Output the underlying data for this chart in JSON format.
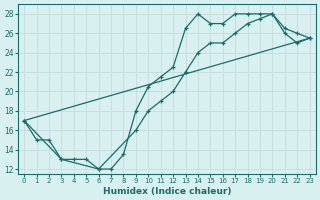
{
  "xlabel": "Humidex (Indice chaleur)",
  "bg_color": "#d8f0f0",
  "grid_color": "#c8dede",
  "line_color": "#1a6b6b",
  "xlim": [
    -0.5,
    23.5
  ],
  "ylim": [
    11.5,
    29.0
  ],
  "xticks": [
    0,
    1,
    2,
    3,
    4,
    5,
    6,
    7,
    8,
    9,
    10,
    11,
    12,
    13,
    14,
    15,
    16,
    17,
    18,
    19,
    20,
    21,
    22,
    23
  ],
  "yticks": [
    12,
    14,
    16,
    18,
    20,
    22,
    24,
    26,
    28
  ],
  "line1_x": [
    0,
    1,
    2,
    3,
    4,
    5,
    6,
    7,
    8,
    9,
    10,
    11,
    12,
    13,
    14,
    15,
    16,
    17,
    18,
    19,
    20,
    21,
    22,
    23
  ],
  "line1_y": [
    17,
    15,
    15,
    13,
    13,
    13,
    12,
    12,
    13.5,
    18,
    20.5,
    21.5,
    22.5,
    26.5,
    28,
    27,
    27,
    28,
    28,
    28,
    28,
    26.5,
    26,
    25.5
  ],
  "line2_x": [
    0,
    3,
    6,
    9,
    10,
    11,
    12,
    13,
    14,
    15,
    16,
    17,
    18,
    19,
    20,
    21,
    22,
    23
  ],
  "line2_y": [
    17,
    13,
    12,
    16,
    18,
    19,
    20,
    22,
    24,
    25,
    25,
    26,
    27,
    27.5,
    28,
    26,
    25,
    25.5
  ],
  "line3_x": [
    0,
    23
  ],
  "line3_y": [
    17,
    25.5
  ]
}
